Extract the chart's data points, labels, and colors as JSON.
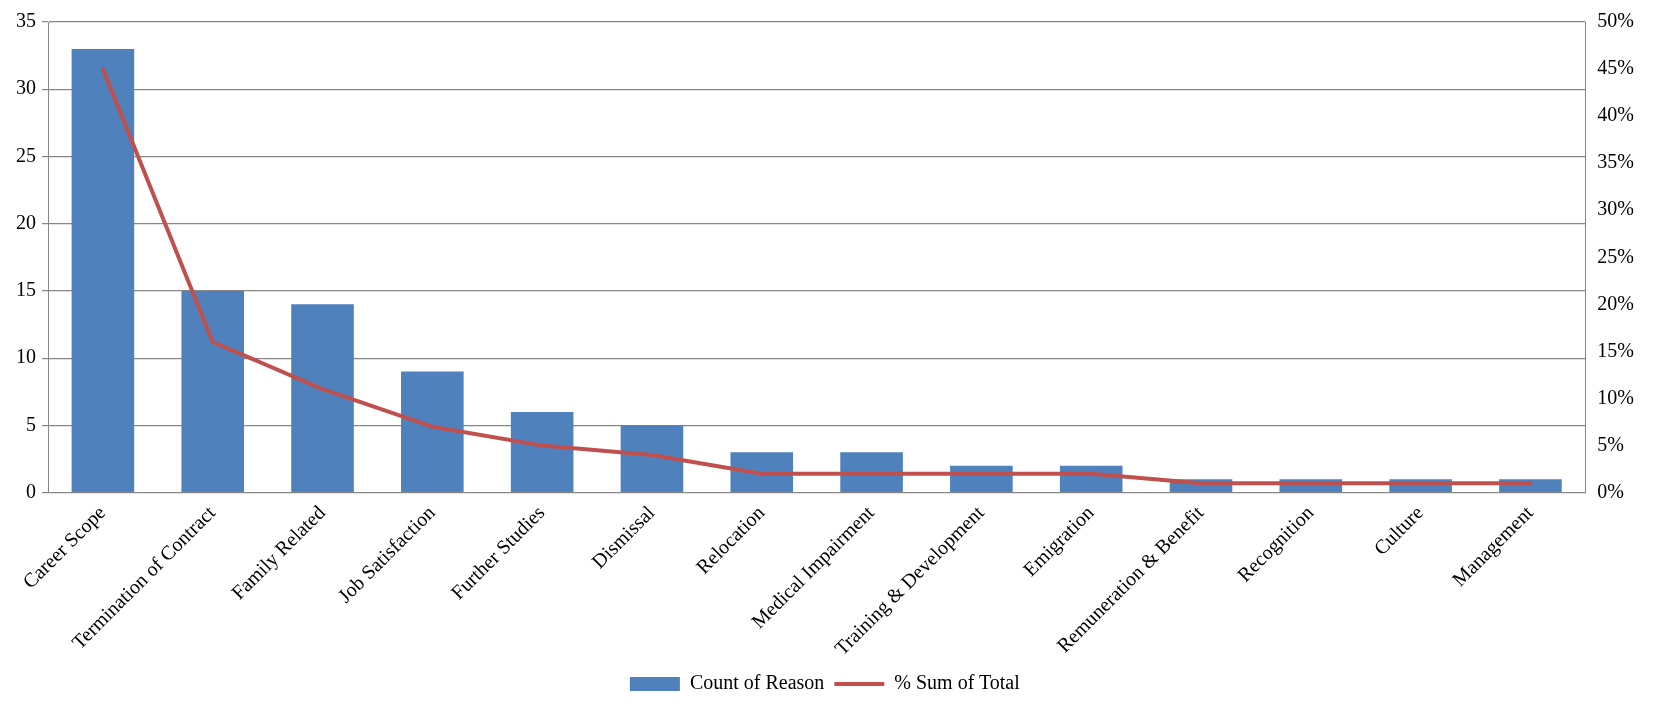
{
  "chart_data": {
    "type": "bar",
    "categories": [
      "Career Scope",
      "Termination of Contract",
      "Family Related",
      "Job Satisfaction",
      "Further Studies",
      "Dismissal",
      "Relocation",
      "Medical Impairment",
      "Training & Development",
      "Emigration",
      "Remuneration & Benefit",
      "Recognition",
      "Culture",
      "Management"
    ],
    "series": [
      {
        "name": "Count of Reason",
        "color": "#4f81bd",
        "values": [
          33,
          15,
          14,
          9,
          6,
          5,
          3,
          3,
          2,
          2,
          1,
          1,
          1,
          1
        ]
      },
      {
        "name": "% Sum of Total",
        "type": "line",
        "axis": "y2",
        "color": "#c0504d",
        "values": [
          45,
          16,
          11,
          7,
          5,
          4,
          2,
          2,
          2,
          2,
          1,
          1,
          1,
          1
        ]
      }
    ],
    "ylim": [
      0,
      35
    ],
    "yticks": [
      0,
      5,
      10,
      15,
      20,
      25,
      30,
      35
    ],
    "y2lim": [
      0,
      50
    ],
    "y2ticks": [
      {
        "value": 0,
        "label": "0%"
      },
      {
        "value": 5,
        "label": "5%"
      },
      {
        "value": 10,
        "label": "10%"
      },
      {
        "value": 15,
        "label": "15%"
      },
      {
        "value": 20,
        "label": "20%"
      },
      {
        "value": 25,
        "label": "25%"
      },
      {
        "value": 30,
        "label": "30%"
      },
      {
        "value": 35,
        "label": "35%"
      },
      {
        "value": 40,
        "label": "40%"
      },
      {
        "value": 45,
        "label": "45%"
      },
      {
        "value": 50,
        "label": "50%"
      }
    ],
    "grid": "y",
    "legend": "bottom",
    "marker": "none",
    "line_style": "solid"
  }
}
